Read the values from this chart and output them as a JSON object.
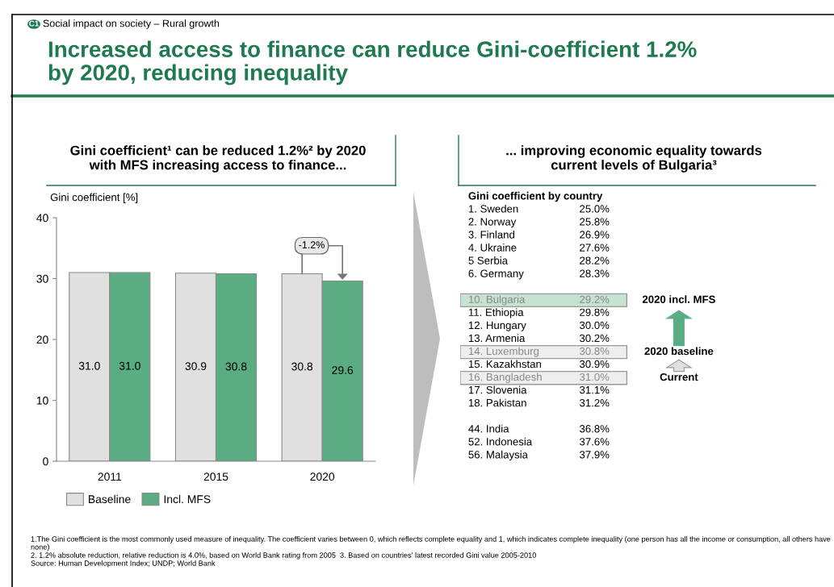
{
  "chart_data": [
    {
      "type": "bar",
      "title": "Increased access to finance can reduce Gini-coefficient 1.2%\nby 2020, reducing inequality",
      "subtitle": "Gini coefficient¹ can be reduced 1.2%² by 2020\nwith MFS increasing access to finance...",
      "ylabel": "Gini coefficient [%]",
      "categories": [
        "2011",
        "2015",
        "2020"
      ],
      "series": [
        {
          "name": "Baseline",
          "color": "#e0e0e0",
          "values": [
            31.0,
            30.9,
            30.8
          ],
          "value_labels": [
            "31.0",
            "30.9",
            "30.8"
          ]
        },
        {
          "name": "Incl. MFS",
          "color": "#5aad82",
          "values": [
            31.0,
            30.8,
            29.6
          ],
          "value_labels": [
            "31.0",
            "30.8",
            "29.6"
          ]
        }
      ],
      "ylim": [
        0,
        40
      ],
      "yticks": [
        0,
        10,
        20,
        30,
        40
      ],
      "grid": false,
      "legend": "bottom left",
      "annotations": [
        "C1",
        "Social impact on society – Rural growth",
        "-1.2%",
        "1.The Gini coefficient is the most commonly used measure of inequality. The coefficient varies between 0, which reflects complete equality and 1, which indicates complete inequality (one person has all the income or consumption, all others have none)",
        "2. 1.2% absolute reduction, relative reduction is 4.0%, based on World Bank rating from 2005  3. Based on countries' latest recorded Gini value 2005-2010",
        "Source: Human Development Index; UNDP; World Bank"
      ]
    },
    {
      "type": "other",
      "title": "... improving economic equality towards\ncurrent levels of Bulgaria³",
      "subtitle": "Gini coefficient by country",
      "categories": [
        "1. Sweden",
        "2. Norway",
        "3. Finland",
        "4. Ukraine",
        "5 Serbia",
        "6. Germany",
        null,
        "10. Bulgaria",
        "11. Ethiopia",
        "12. Hungary",
        "13. Armenia",
        "14. Luxemburg",
        "15. Kazakhstan",
        "16. Bangladesh",
        "17. Slovenia",
        "18. Pakistan",
        null,
        "44. India",
        "52. Indonesia",
        "56. Malaysia"
      ],
      "value_labels": [
        "25.0%",
        "25.8%",
        "26.9%",
        "27.6%",
        "28.2%",
        "28.3%",
        null,
        "29.2%",
        "29.8%",
        "30.0%",
        "30.2%",
        "30.8%",
        "30.9%",
        "31.0%",
        "31.1%",
        "31.2%",
        null,
        "36.8%",
        "37.6%",
        "37.9%"
      ],
      "colors": [
        null,
        null,
        null,
        null,
        null,
        null,
        null,
        "#c5e3d0",
        null,
        null,
        null,
        "#eeeeee",
        null,
        "#eeeeee",
        null,
        null,
        null,
        null,
        null,
        null
      ],
      "annotations": [
        "2020 incl. MFS",
        "2020 baseline",
        "Current"
      ]
    }
  ]
}
